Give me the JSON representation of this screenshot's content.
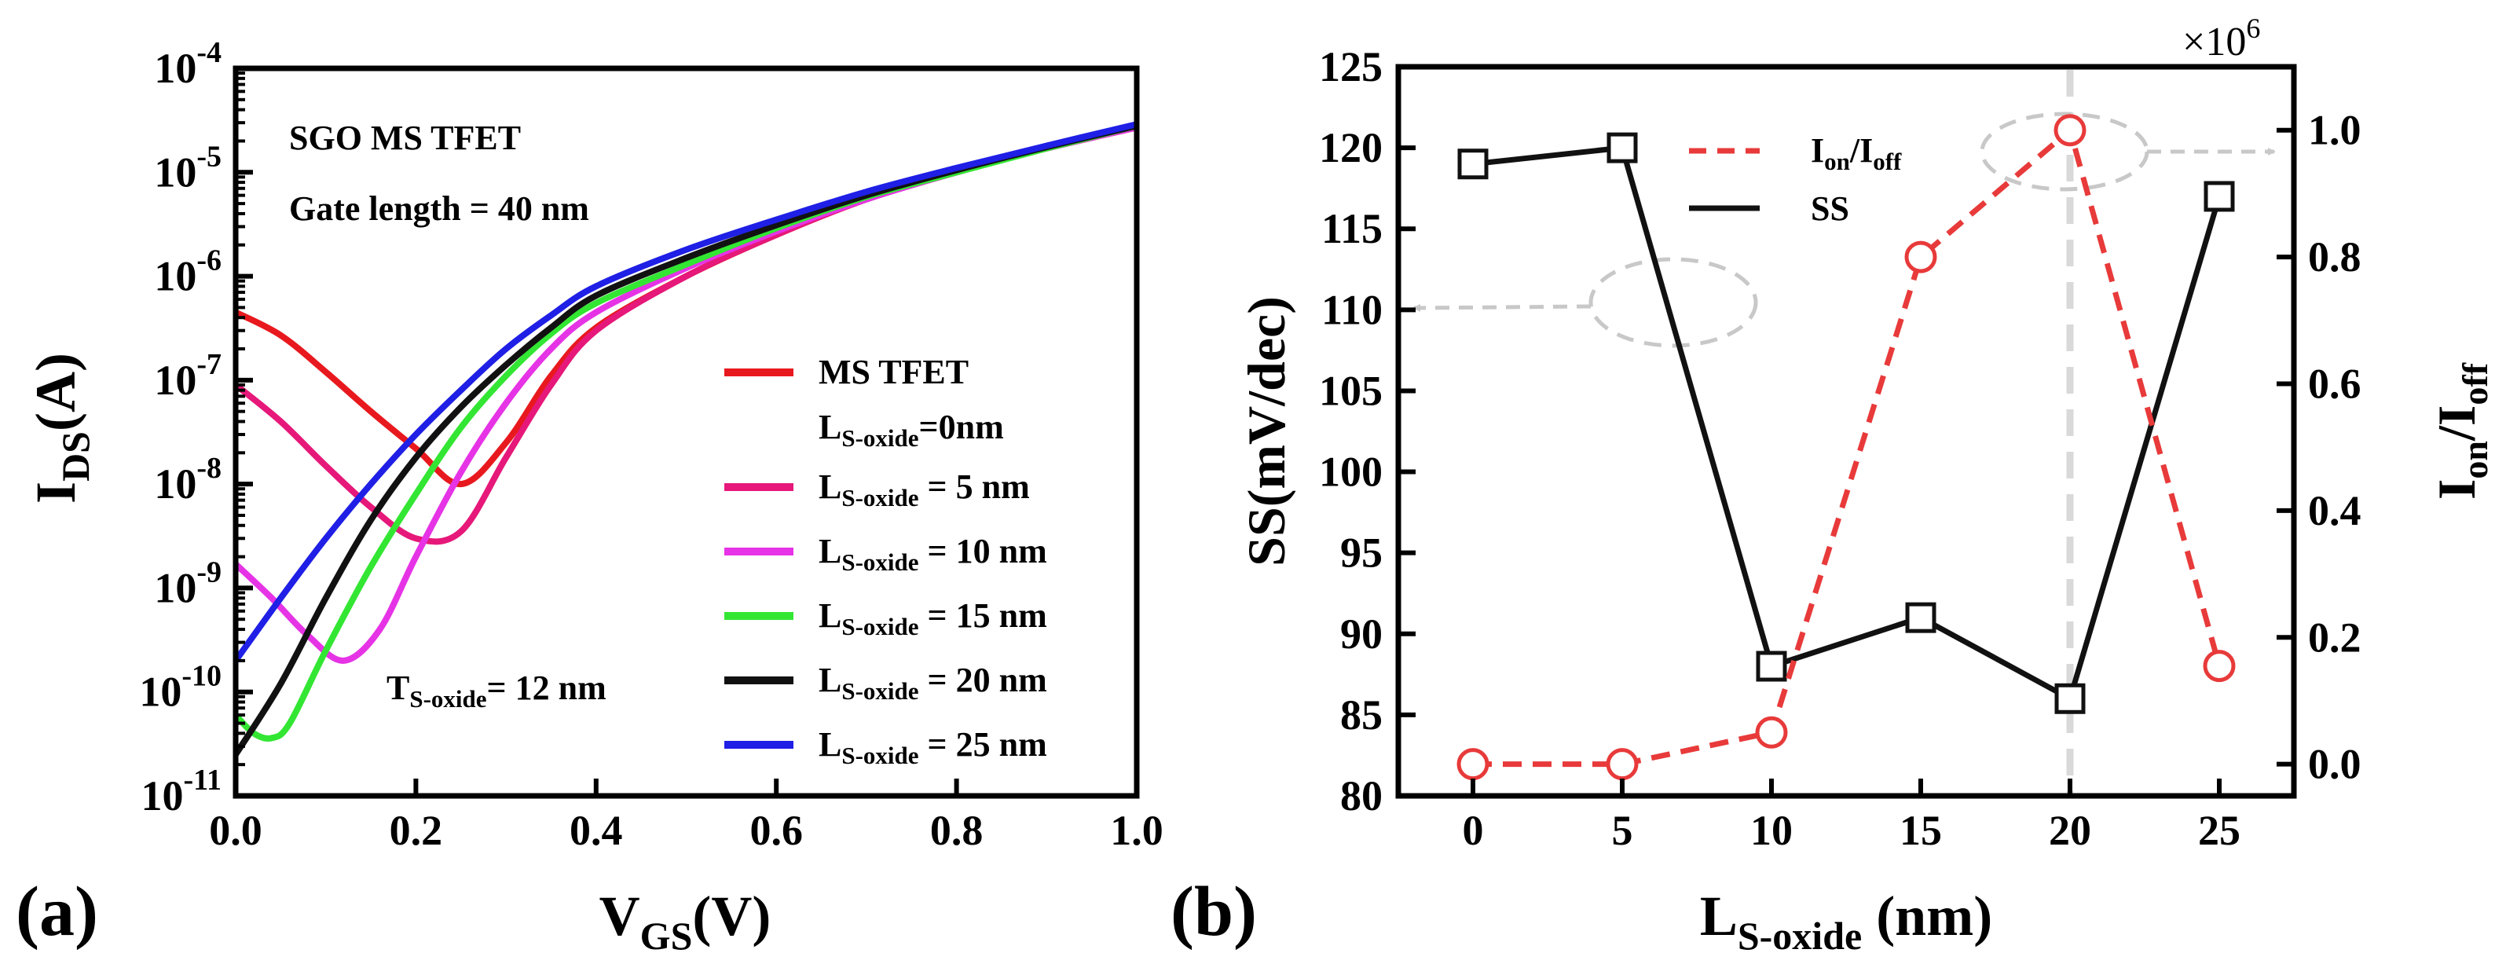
{
  "chart_data": [
    {
      "panel": "(a)",
      "type": "line",
      "xscale": "linear",
      "yscale": "log",
      "xlim": [
        0.0,
        1.0
      ],
      "ylim": [
        1e-11,
        0.0001
      ],
      "x_ticks": [
        "0.0",
        "0.2",
        "0.4",
        "0.6",
        "0.8",
        "1.0"
      ],
      "y_ticks": [
        "10^-11",
        "10^-10",
        "10^-9",
        "10^-8",
        "10^-7",
        "10^-6",
        "10^-5",
        "10^-4"
      ],
      "xlabel": {
        "main": "V",
        "sub": "GS",
        "unit": "(V)"
      },
      "ylabel": {
        "main": "I",
        "sub": "DS",
        "unit": "(A)"
      },
      "annotations": [
        {
          "id": "title",
          "text": "SGO MS TFET"
        },
        {
          "id": "gate",
          "text": "Gate length = 40 nm"
        },
        {
          "id": "toxide",
          "main": "T",
          "sub": "S-oxide",
          "rest": "= 12 nm"
        }
      ],
      "legend_position": "right-center",
      "series": [
        {
          "name": "MS TFET",
          "label_line2": {
            "main": "L",
            "sub": "S-oxide",
            "rest": "=0nm"
          },
          "color": "#e8191e",
          "x": [
            0.0,
            0.05,
            0.1,
            0.15,
            0.2,
            0.25,
            0.3,
            0.35,
            0.4,
            0.5,
            0.6,
            0.7,
            0.8,
            0.9,
            1.0
          ],
          "y": [
            4.5e-07,
            2.7e-07,
            1.2e-07,
            5e-08,
            2.2e-08,
            1e-08,
            2.5e-08,
            1.1e-07,
            3.2e-07,
            1e-06,
            2.5e-06,
            5.5e-06,
            1e-05,
            1.7e-05,
            2.7e-05
          ]
        },
        {
          "name": "L_S-oxide = 5 nm",
          "label": {
            "main": "L",
            "sub": "S-oxide",
            "rest": " = 5 nm"
          },
          "color": "#e6187a",
          "x": [
            0.0,
            0.05,
            0.1,
            0.15,
            0.2,
            0.25,
            0.3,
            0.35,
            0.4,
            0.5,
            0.6,
            0.7,
            0.8,
            0.9,
            1.0
          ],
          "y": [
            9e-08,
            4e-08,
            1.5e-08,
            6e-09,
            3e-09,
            3.5e-09,
            1.8e-08,
            9e-08,
            3e-07,
            1e-06,
            2.5e-06,
            5.5e-06,
            1e-05,
            1.7e-05,
            2.7e-05
          ]
        },
        {
          "name": "L_S-oxide = 10 nm",
          "label": {
            "main": "L",
            "sub": "S-oxide",
            "rest": " = 10 nm"
          },
          "color": "#e633e6",
          "x": [
            0.0,
            0.04,
            0.08,
            0.12,
            0.16,
            0.2,
            0.25,
            0.3,
            0.35,
            0.4,
            0.5,
            0.6,
            0.7,
            0.8,
            0.9,
            1.0
          ],
          "y": [
            1.7e-09,
            8e-10,
            3.5e-10,
            2e-10,
            4e-10,
            2e-09,
            1.3e-08,
            6e-08,
            2e-07,
            4.5e-07,
            1.2e-06,
            2.7e-06,
            5.5e-06,
            1e-05,
            1.7e-05,
            2.7e-05
          ]
        },
        {
          "name": "L_S-oxide = 15 nm",
          "label": {
            "main": "L",
            "sub": "S-oxide",
            "rest": " = 15 nm"
          },
          "color": "#33e633",
          "x": [
            0.0,
            0.02,
            0.04,
            0.06,
            0.1,
            0.15,
            0.2,
            0.25,
            0.3,
            0.35,
            0.4,
            0.5,
            0.6,
            0.7,
            0.8,
            0.9,
            1.0
          ],
          "y": [
            6e-11,
            4e-11,
            3.6e-11,
            5e-11,
            2.5e-10,
            1.6e-09,
            8e-09,
            3.5e-08,
            1.1e-07,
            2.8e-07,
            5.5e-07,
            1.3e-06,
            2.9e-06,
            5.8e-06,
            1e-05,
            1.7e-05,
            2.8e-05
          ]
        },
        {
          "name": "L_S-oxide = 20 nm",
          "label": {
            "main": "L",
            "sub": "S-oxide",
            "rest": " = 20 nm"
          },
          "color": "#111111",
          "x": [
            0.0,
            0.05,
            0.1,
            0.15,
            0.2,
            0.25,
            0.3,
            0.35,
            0.4,
            0.5,
            0.6,
            0.7,
            0.8,
            0.9,
            1.0
          ],
          "y": [
            2.5e-11,
            1.2e-10,
            8e-10,
            4.5e-09,
            1.8e-08,
            5.5e-08,
            1.4e-07,
            3.2e-07,
            6.5e-07,
            1.5e-06,
            3.1e-06,
            6e-06,
            1.05e-05,
            1.75e-05,
            2.8e-05
          ]
        },
        {
          "name": "L_S-oxide = 25 nm",
          "label": {
            "main": "L",
            "sub": "S-oxide",
            "rest": " = 25 nm"
          },
          "color": "#1f1fe6",
          "x": [
            0.0,
            0.05,
            0.1,
            0.15,
            0.2,
            0.25,
            0.3,
            0.35,
            0.4,
            0.5,
            0.6,
            0.7,
            0.8,
            0.9,
            1.0
          ],
          "y": [
            2e-10,
            8e-10,
            3e-09,
            1e-08,
            3e-08,
            8e-08,
            2e-07,
            4.2e-07,
            8e-07,
            1.8e-06,
            3.5e-06,
            6.5e-06,
            1.1e-05,
            1.8e-05,
            2.9e-05
          ]
        }
      ]
    },
    {
      "panel": "(b)",
      "type": "line",
      "x": [
        0,
        5,
        10,
        15,
        20,
        25
      ],
      "x_ticks": [
        "0",
        "5",
        "10",
        "15",
        "20",
        "25"
      ],
      "xlim": [
        -2.5,
        27.5
      ],
      "xlabel": {
        "main": "L",
        "sub": "S-oxide",
        "rest": " (nm)"
      },
      "left_axis": {
        "label": "SS(mV/dec)",
        "ylim": [
          80,
          125
        ],
        "ticks": [
          "80",
          "85",
          "90",
          "95",
          "100",
          "105",
          "110",
          "115",
          "120",
          "125"
        ]
      },
      "right_axis": {
        "label": {
          "main": "I",
          "sub1": "on",
          "mid": "/I",
          "sub2": "off"
        },
        "ylim": [
          -0.05,
          1.1
        ],
        "multiplier": "×10",
        "multiplier_exp": "6",
        "ticks": [
          "0.0",
          "0.2",
          "0.4",
          "0.6",
          "0.8",
          "1.0"
        ]
      },
      "series": [
        {
          "name": "SS",
          "axis": "left",
          "color": "#111111",
          "style": "solid",
          "marker": "square",
          "values": [
            119,
            120,
            88,
            91,
            86,
            117
          ]
        },
        {
          "name": "Ion/Ioff",
          "label": {
            "main": "I",
            "sub1": "on",
            "mid": "/I",
            "sub2": "off"
          },
          "axis": "right",
          "color": "#e83a3a",
          "style": "dashed",
          "marker": "circle",
          "values": [
            0.0,
            0.0,
            0.05,
            0.8,
            1.0,
            0.155
          ]
        }
      ],
      "vertical_marker_x": 20,
      "legend_position": "top-left"
    }
  ]
}
